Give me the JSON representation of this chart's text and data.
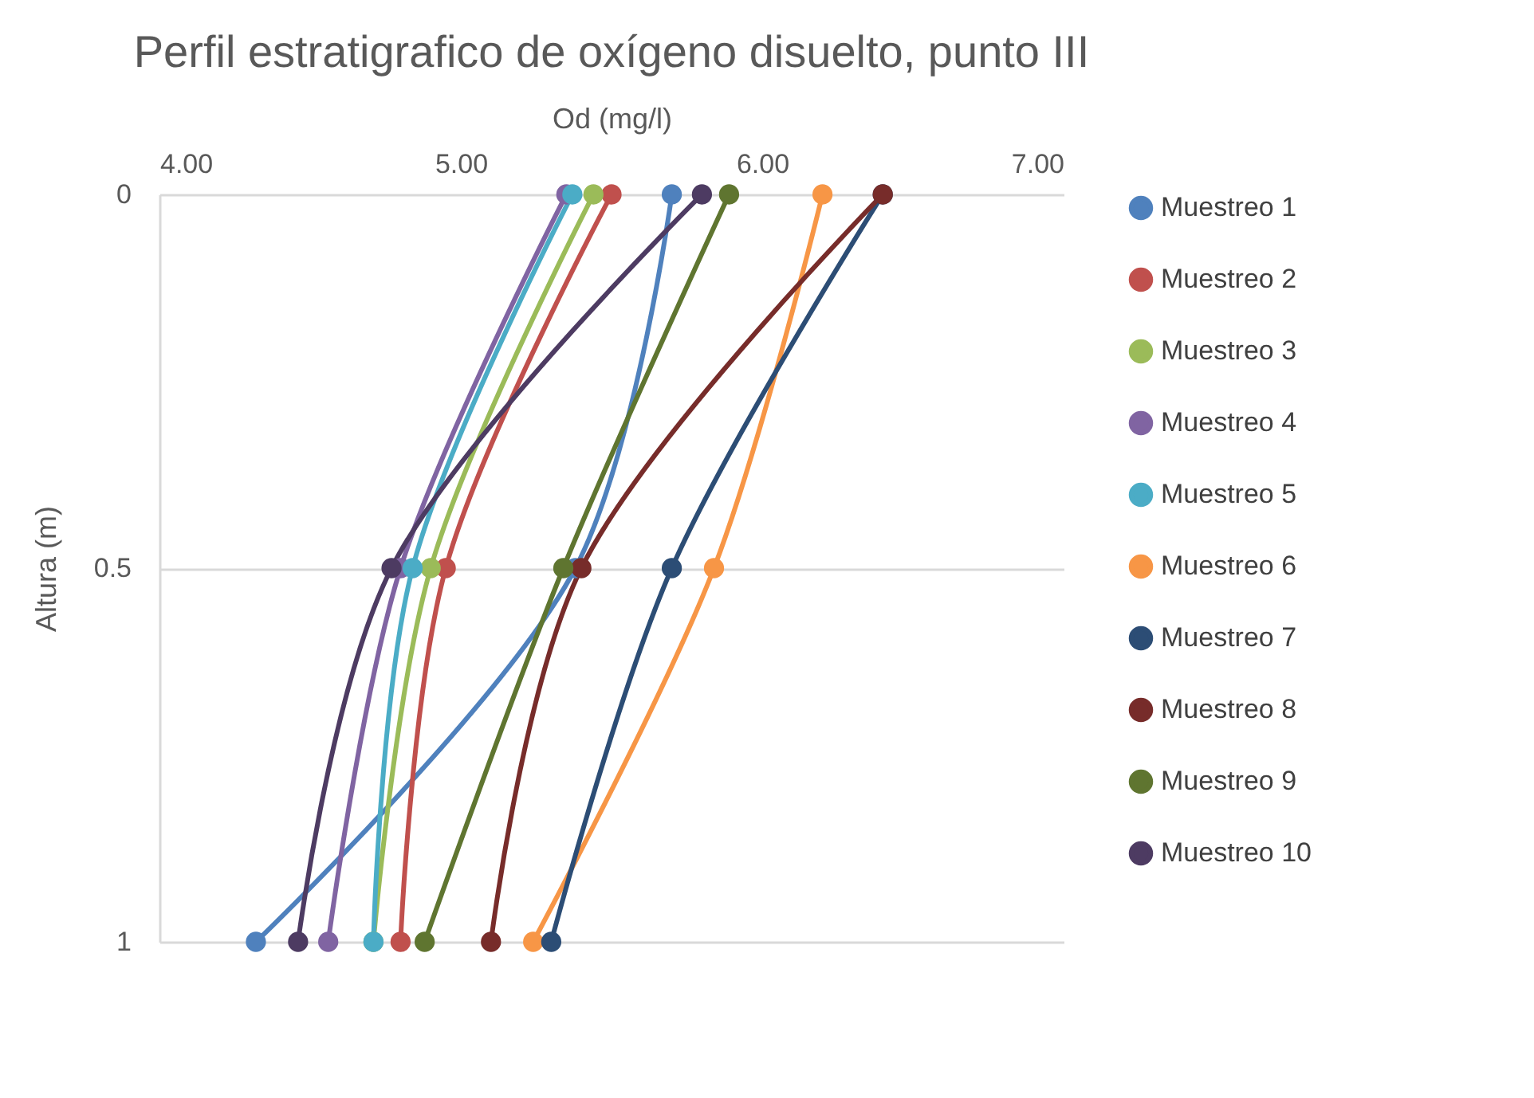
{
  "chart_data": {
    "type": "line",
    "title": "Perfil estratigrafico de oxígeno disuelto, punto III",
    "xlabel": "Od (mg/l)",
    "ylabel": "Altura (m)",
    "xlim": [
      4,
      7
    ],
    "xticks": [
      {
        "value": 4,
        "label": "4.00"
      },
      {
        "value": 5,
        "label": "5.00"
      },
      {
        "value": 6,
        "label": "6.00"
      },
      {
        "value": 7,
        "label": "7.00"
      }
    ],
    "ylim": [
      1,
      0
    ],
    "yticks": [
      0,
      0.5,
      1
    ],
    "grid": "y",
    "legend": "right",
    "marker": "circle",
    "line_style": "solid",
    "series": [
      {
        "name": "Muestreo 1",
        "color": "#4f81bd",
        "x": [
          5.7,
          5.38,
          4.32
        ],
        "values": [
          0,
          0.5,
          1
        ]
      },
      {
        "name": "Muestreo 2",
        "color": "#c0504d",
        "x": [
          5.5,
          4.95,
          4.8
        ],
        "values": [
          0,
          0.5,
          1
        ]
      },
      {
        "name": "Muestreo 3",
        "color": "#9bbb59",
        "x": [
          5.44,
          4.9,
          4.71
        ],
        "values": [
          0,
          0.5,
          1
        ]
      },
      {
        "name": "Muestreo 4",
        "color": "#8064a2",
        "x": [
          5.35,
          4.8,
          4.56
        ],
        "values": [
          0,
          0.5,
          1
        ]
      },
      {
        "name": "Muestreo 5",
        "color": "#4bacc6",
        "x": [
          5.37,
          4.84,
          4.71
        ],
        "values": [
          0,
          0.5,
          1
        ]
      },
      {
        "name": "Muestreo 6",
        "color": "#f79646",
        "x": [
          6.2,
          5.84,
          5.24
        ],
        "values": [
          0,
          0.5,
          1
        ]
      },
      {
        "name": "Muestreo 7",
        "color": "#2c4d75",
        "x": [
          6.4,
          5.7,
          5.3
        ],
        "values": [
          0,
          0.5,
          1
        ]
      },
      {
        "name": "Muestreo 8",
        "color": "#772c2a",
        "x": [
          6.4,
          5.4,
          5.1
        ],
        "values": [
          0,
          0.5,
          1
        ]
      },
      {
        "name": "Muestreo 9",
        "color": "#5f7530",
        "x": [
          5.89,
          5.34,
          4.88
        ],
        "values": [
          0,
          0.5,
          1
        ]
      },
      {
        "name": "Muestreo 10",
        "color": "#4d3b62",
        "x": [
          5.8,
          4.77,
          4.46
        ],
        "values": [
          0,
          0.5,
          1
        ]
      }
    ]
  }
}
